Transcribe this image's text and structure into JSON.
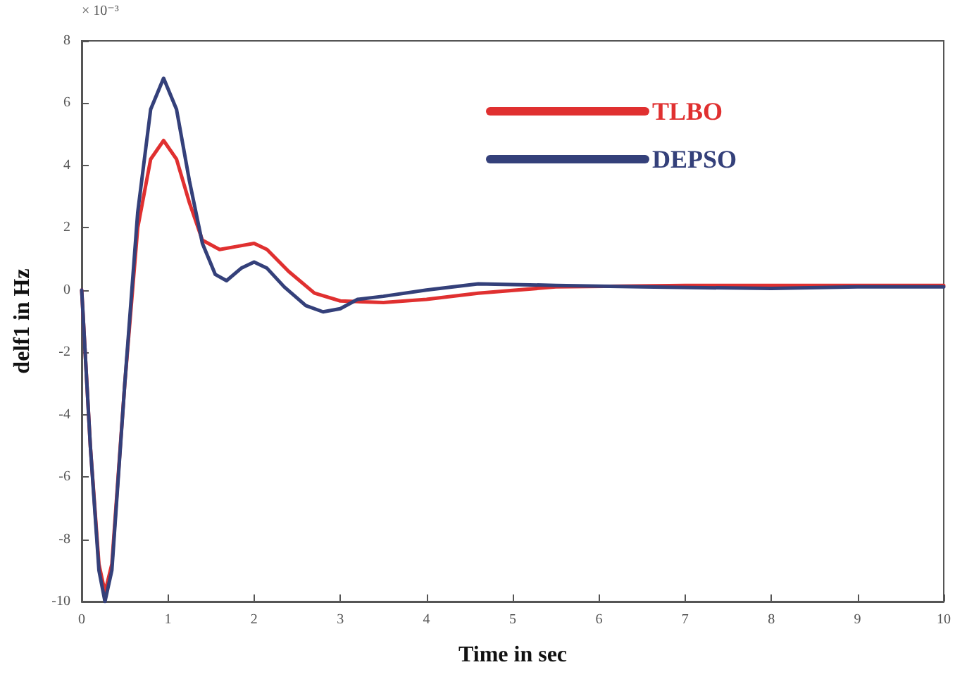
{
  "chart_data": {
    "type": "line",
    "xlabel": "Time in sec",
    "ylabel": "delf1 in Hz",
    "annotations": [
      "× 10⁻³"
    ],
    "xlim": [
      0,
      10
    ],
    "xticks": [
      0,
      1,
      2,
      3,
      4,
      5,
      6,
      7,
      8,
      9,
      10
    ],
    "ylim": [
      -10,
      8
    ],
    "yticks": [
      -10,
      -8,
      -6,
      -4,
      -2,
      0,
      2,
      4,
      6,
      8
    ],
    "grid": false,
    "legend": "top right",
    "marker": "none",
    "line_style": "solid",
    "series": [
      {
        "name": "TLBO",
        "color": "#e03030",
        "x": [
          0,
          0.1,
          0.2,
          0.27,
          0.35,
          0.5,
          0.65,
          0.8,
          0.95,
          1.1,
          1.25,
          1.4,
          1.6,
          1.8,
          2.0,
          2.15,
          2.4,
          2.7,
          3.0,
          3.5,
          4.0,
          4.6,
          5.5,
          7,
          10
        ],
        "values": [
          0,
          -5,
          -8.8,
          -9.7,
          -8.8,
          -3,
          2,
          4.2,
          4.8,
          4.2,
          2.8,
          1.6,
          1.3,
          1.4,
          1.5,
          1.3,
          0.6,
          -0.1,
          -0.35,
          -0.4,
          -0.3,
          -0.1,
          0.1,
          0.15,
          0.15
        ]
      },
      {
        "name": "DEPSO",
        "color": "#34407a",
        "x": [
          0,
          0.1,
          0.2,
          0.27,
          0.35,
          0.5,
          0.65,
          0.8,
          0.95,
          1.1,
          1.25,
          1.4,
          1.55,
          1.68,
          1.85,
          2.0,
          2.15,
          2.35,
          2.6,
          2.8,
          3.0,
          3.2,
          3.5,
          4.0,
          4.6,
          5.5,
          6.5,
          8,
          9,
          10
        ],
        "values": [
          0,
          -5,
          -9,
          -10,
          -9,
          -3,
          2.5,
          5.8,
          6.8,
          5.8,
          3.5,
          1.5,
          0.5,
          0.3,
          0.7,
          0.9,
          0.7,
          0.1,
          -0.5,
          -0.7,
          -0.6,
          -0.3,
          -0.2,
          0,
          0.2,
          0.15,
          0.1,
          0.05,
          0.1,
          0.1
        ]
      }
    ]
  }
}
